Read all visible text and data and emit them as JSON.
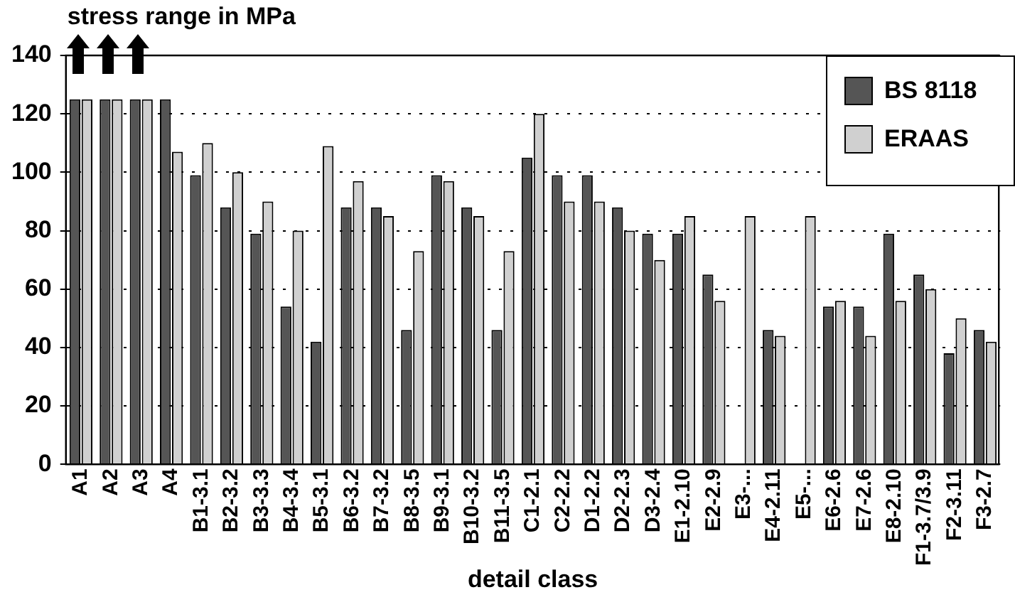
{
  "chart_data": {
    "type": "bar",
    "ylabel": "stress range in MPa",
    "xlabel": "detail class",
    "categories": [
      "A1",
      "A2",
      "A3",
      "A4",
      "B1-3.1",
      "B2-3.2",
      "B3-3.3",
      "B4-3.4",
      "B5-3.1",
      "B6-3.2",
      "B7-3.2",
      "B8-3.5",
      "B9-3.1",
      "B10-3.2",
      "B11-3.5",
      "C1-2.1",
      "C2-2.2",
      "D1-2.2",
      "D2-2.3",
      "D3-2.4",
      "E1-2.10",
      "E2-2.9",
      "E3-...",
      "E4-2.11",
      "E5-...",
      "E6-2.6",
      "E7-2.6",
      "E8-2.10",
      "F1-3.7/3.9",
      "F2-3.11",
      "F3-2.7"
    ],
    "series": [
      {
        "name": "BS 8118",
        "color": "#555555",
        "values": [
          125,
          125,
          125,
          125,
          99,
          88,
          79,
          54,
          42,
          88,
          88,
          46,
          99,
          88,
          46,
          105,
          99,
          99,
          88,
          79,
          79,
          65,
          null,
          46,
          null,
          54,
          54,
          79,
          65,
          38,
          46
        ]
      },
      {
        "name": "ERAAS",
        "color": "#d0d0d0",
        "values": [
          125,
          125,
          125,
          107,
          110,
          100,
          90,
          80,
          109,
          97,
          85,
          73,
          97,
          85,
          73,
          120,
          90,
          90,
          80,
          70,
          85,
          56,
          85,
          44,
          85,
          56,
          44,
          56,
          60,
          50,
          42
        ]
      }
    ],
    "ylim": [
      0,
      140
    ],
    "yticks": [
      0,
      20,
      40,
      60,
      80,
      100,
      120,
      140
    ],
    "grid": "y",
    "legend": "top right"
  }
}
